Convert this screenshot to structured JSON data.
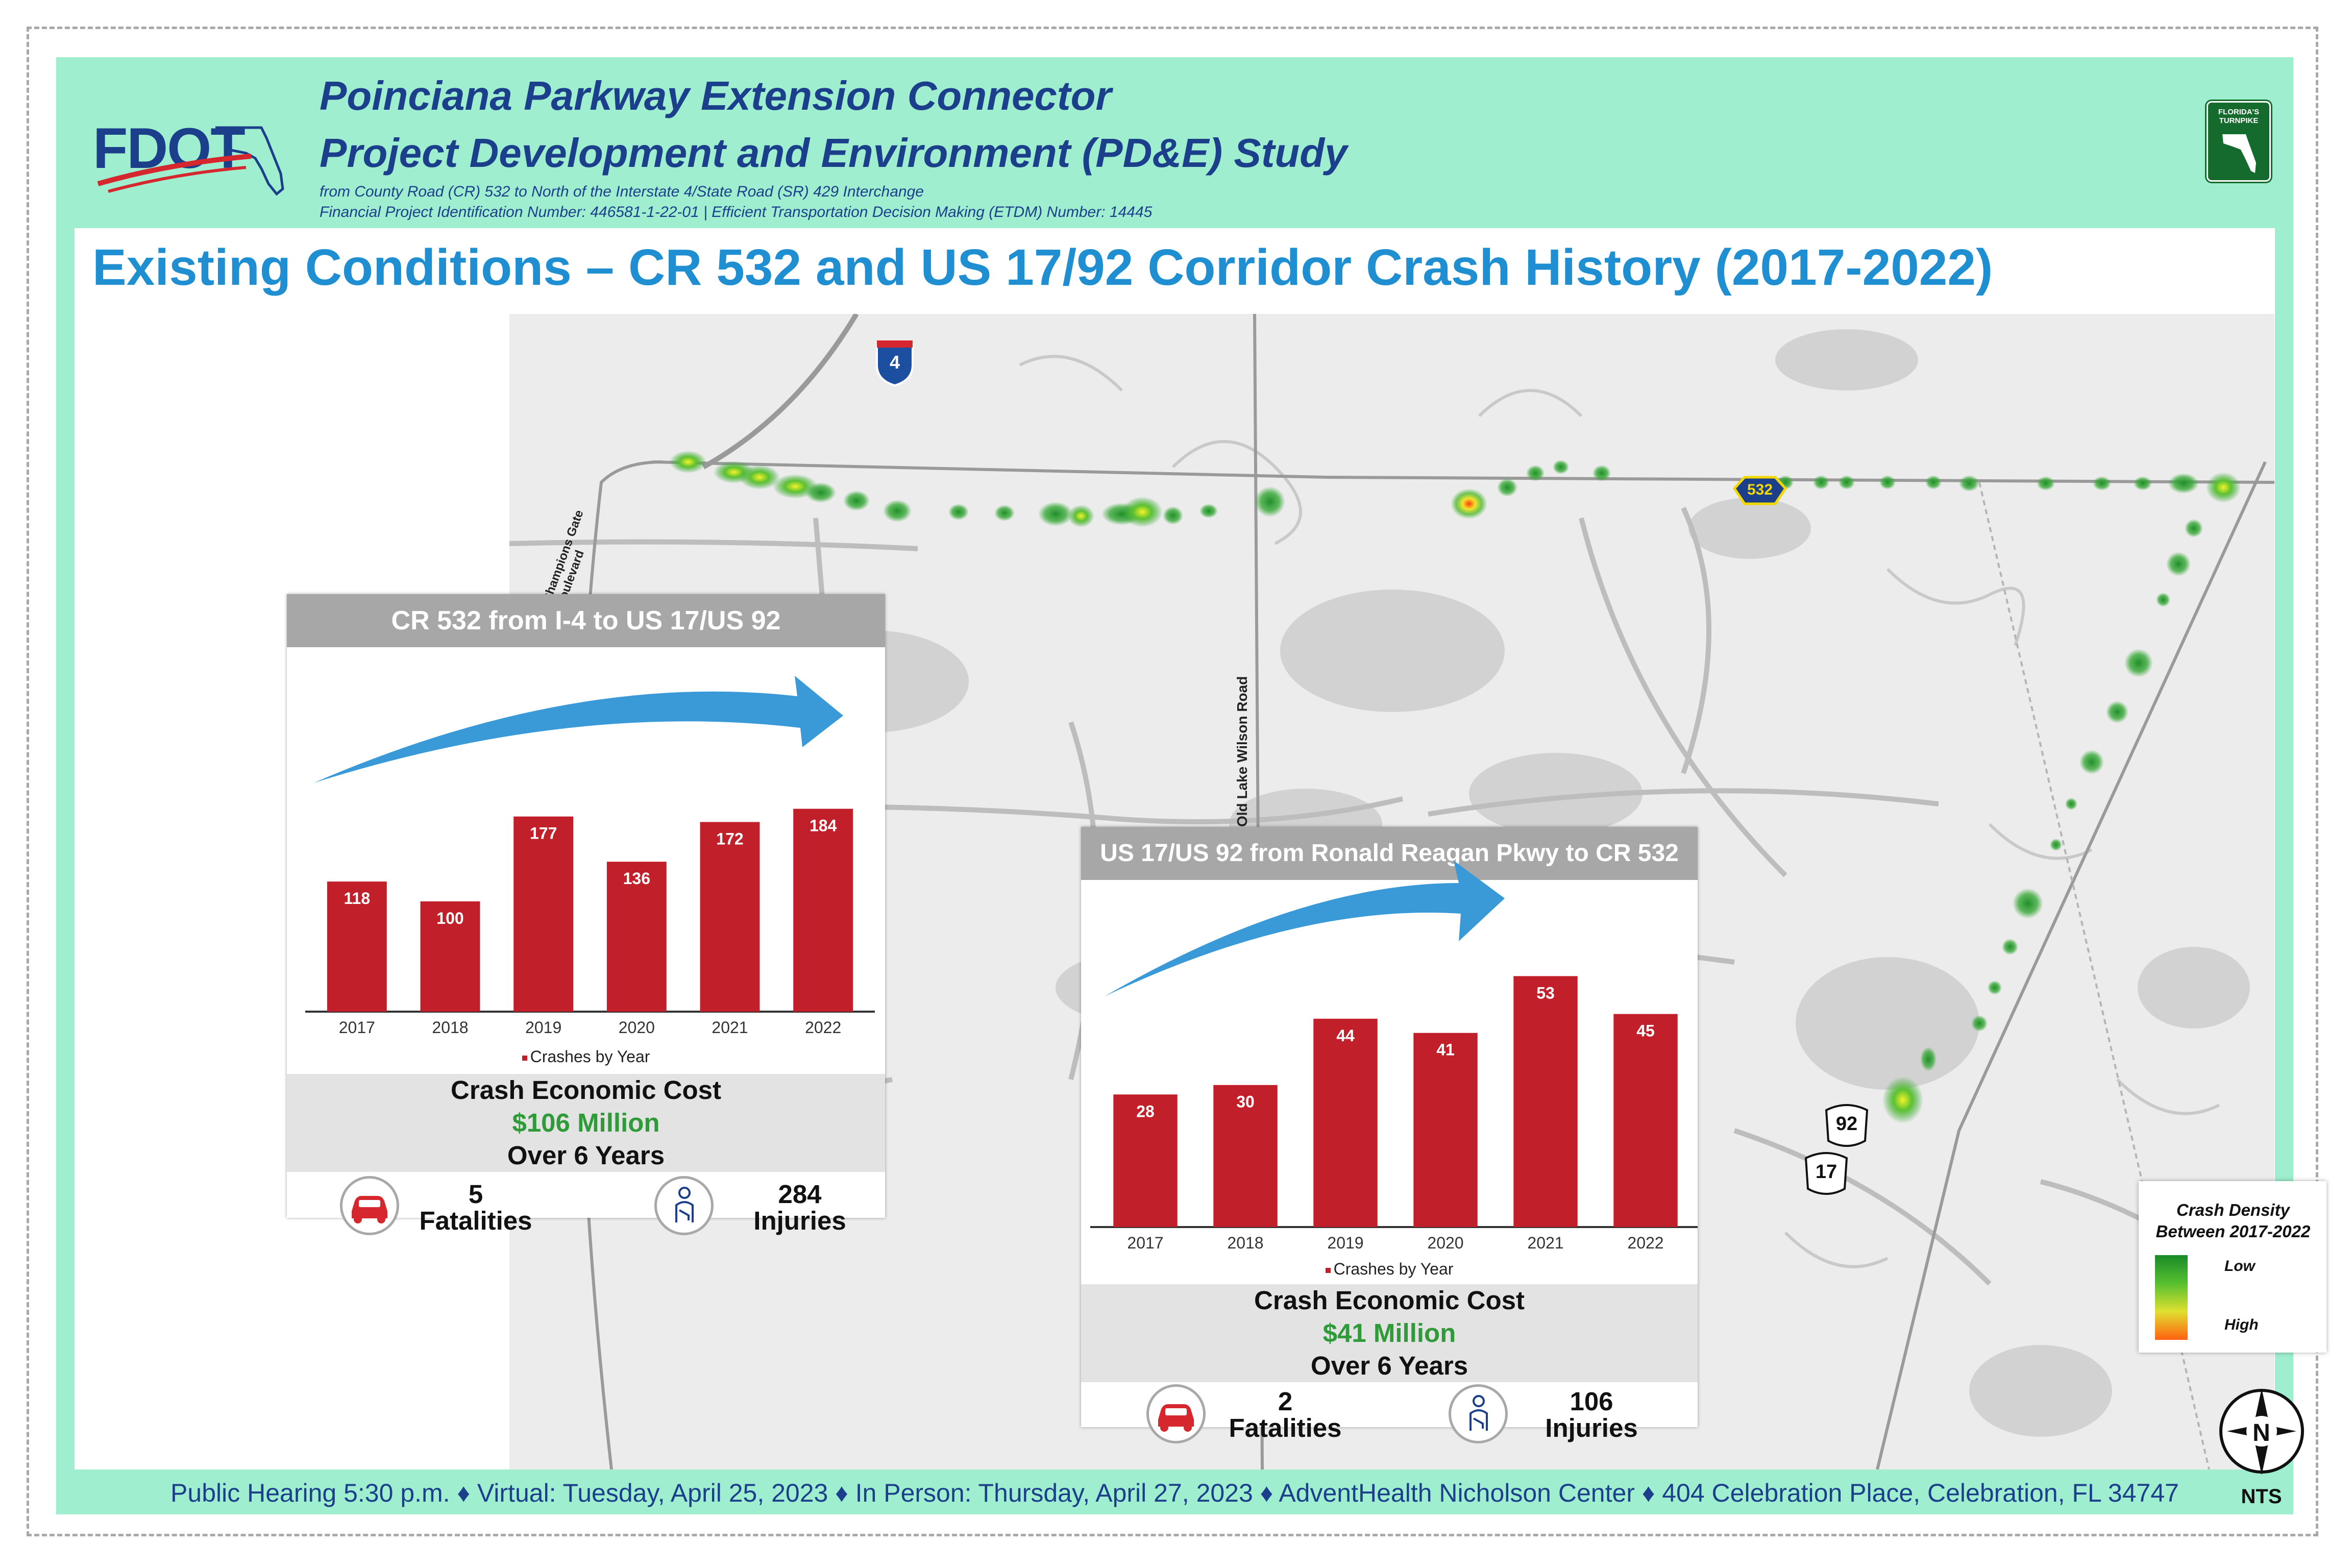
{
  "header": {
    "logo_text": "FDOT",
    "title_line1": "Poinciana Parkway Extension Connector",
    "title_line2": "Project Development and Environment (PD&E) Study",
    "subtitle_line1": "from County Road (CR) 532 to North of the Interstate 4/State Road (SR) 429 Interchange",
    "subtitle_line2": "Financial Project Identification Number: 446581-1-22-01 |  Efficient Transportation Decision Making (ETDM) Number: 14445",
    "turnpike_text": "FLORIDA'S TURNPIKE"
  },
  "main_title": "Existing Conditions – CR 532 and US 17/92 Corridor Crash History (2017-2022)",
  "map_labels": {
    "i4_shield": "4",
    "cr532_shield": "532",
    "us92_shield": "92",
    "us17_shield": "17",
    "champions_gate": "Champions Gate Boulevard",
    "old_lake_wilson": "Old Lake Wilson Road"
  },
  "panel1": {
    "title": "CR 532 from I-4 to US 17/US 92",
    "legend": "Crashes by Year",
    "cost_label": "Crash Economic Cost",
    "cost_value": "$106 Million",
    "cost_period": "Over 6 Years",
    "fatalities_value": "5",
    "fatalities_label": "Fatalities",
    "injuries_value": "284",
    "injuries_label": "Injuries"
  },
  "panel2": {
    "title": "US 17/US 92 from Ronald Reagan Pkwy to CR 532",
    "legend": "Crashes by Year",
    "cost_label": "Crash Economic Cost",
    "cost_value": "$41 Million",
    "cost_period": "Over 6 Years",
    "fatalities_value": "2",
    "fatalities_label": "Fatalities",
    "injuries_value": "106",
    "injuries_label": "Injuries"
  },
  "chart_data": [
    {
      "type": "bar",
      "title": "CR 532 from I-4 to US 17/US 92",
      "categories": [
        "2017",
        "2018",
        "2019",
        "2020",
        "2021",
        "2022"
      ],
      "series": [
        {
          "name": "Crashes by Year",
          "values": [
            118,
            100,
            177,
            136,
            172,
            184
          ]
        }
      ],
      "ylim": [
        0,
        200
      ],
      "legend": "bottom",
      "grid": false,
      "bar_color": "#c1202a"
    },
    {
      "type": "bar",
      "title": "US 17/US 92 from Ronald Reagan Pkwy to CR 532",
      "categories": [
        "2017",
        "2018",
        "2019",
        "2020",
        "2021",
        "2022"
      ],
      "series": [
        {
          "name": "Crashes by Year",
          "values": [
            28,
            30,
            44,
            41,
            53,
            45
          ]
        }
      ],
      "ylim": [
        0,
        58
      ],
      "legend": "bottom",
      "grid": false,
      "bar_color": "#c1202a"
    }
  ],
  "legend": {
    "title_line1": "Crash Density",
    "title_line2": "Between 2017-2022",
    "low": "Low",
    "high": "High"
  },
  "north_arrow": {
    "letter": "N",
    "scale": "NTS"
  },
  "footer": "Public Hearing 5:30 p.m. ♦ Virtual: Tuesday, April 25, 2023 ♦ In Person: Thursday, April 27, 2023 ♦  AdventHealth Nicholson Center ♦ 404 Celebration Place, Celebration, FL 34747",
  "colors": {
    "background": "#9eeecf",
    "title_blue": "#1f8fd1",
    "header_navy": "#1c3f8c",
    "bar_red": "#c1202a",
    "cost_green": "#2e9a38",
    "arrow_blue": "#3a9ad8"
  }
}
